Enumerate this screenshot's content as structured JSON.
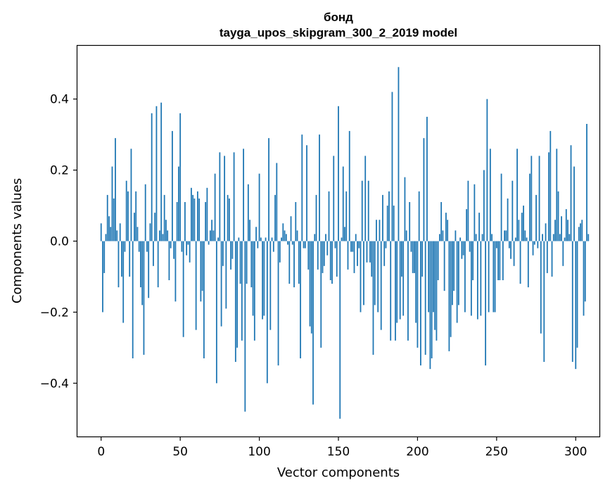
{
  "chart_data": {
    "type": "bar",
    "title": "бонд",
    "subtitle": "tayga_upos_skipgram_300_2_2019 model",
    "xlabel": "Vector components",
    "ylabel": "Components values",
    "xlim": [
      -15,
      315
    ],
    "ylim": [
      -0.55,
      0.55
    ],
    "x_ticks": [
      0,
      50,
      100,
      150,
      200,
      250,
      300
    ],
    "x_tick_labels": [
      "0",
      "50",
      "100",
      "150",
      "200",
      "250",
      "300"
    ],
    "y_ticks": [
      -0.4,
      -0.2,
      0.0,
      0.2,
      0.4
    ],
    "y_tick_labels": [
      "−0.4",
      "−0.2",
      "0.0",
      "0.2",
      "0.4"
    ],
    "bar_color": "#1f77b4",
    "values": [
      0.05,
      -0.2,
      -0.09,
      0.02,
      0.13,
      0.07,
      0.04,
      0.21,
      0.12,
      0.29,
      0.03,
      -0.13,
      0.05,
      -0.1,
      -0.23,
      -0.03,
      0.17,
      0.14,
      -0.1,
      0.26,
      -0.33,
      0.08,
      0.14,
      0.04,
      -0.03,
      -0.13,
      -0.18,
      -0.32,
      0.16,
      -0.03,
      -0.16,
      0.05,
      0.36,
      -0.07,
      0.08,
      0.38,
      -0.13,
      0.03,
      0.39,
      0.02,
      0.13,
      0.06,
      0.03,
      -0.11,
      -0.02,
      0.31,
      -0.05,
      -0.17,
      0.11,
      0.21,
      0.36,
      -0.03,
      -0.27,
      0.11,
      -0.04,
      -0.01,
      -0.06,
      0.15,
      0.13,
      0.12,
      -0.25,
      0.14,
      0.12,
      -0.17,
      -0.14,
      -0.33,
      0.11,
      0.15,
      -0.01,
      0.03,
      0.06,
      0.03,
      0.19,
      -0.4,
      0.01,
      0.25,
      -0.24,
      -0.07,
      0.24,
      -0.19,
      0.13,
      0.12,
      -0.08,
      -0.05,
      0.25,
      -0.34,
      -0.3,
      0.01,
      -0.12,
      -0.28,
      0.26,
      -0.48,
      -0.12,
      0.16,
      0.06,
      -0.13,
      -0.21,
      -0.28,
      0.04,
      -0.02,
      0.19,
      0.01,
      -0.22,
      -0.21,
      0.01,
      -0.4,
      0.29,
      -0.25,
      0.01,
      -0.03,
      0.13,
      0.22,
      -0.35,
      -0.06,
      0.01,
      0.05,
      0.03,
      0.02,
      -0.01,
      -0.12,
      0.07,
      -0.01,
      -0.13,
      0.11,
      0.03,
      -0.12,
      -0.33,
      0.3,
      -0.02,
      -0.02,
      0.27,
      -0.08,
      -0.24,
      -0.26,
      -0.46,
      0.02,
      0.13,
      -0.08,
      0.3,
      -0.3,
      -0.09,
      -0.07,
      0.02,
      -0.04,
      0.14,
      -0.11,
      -0.12,
      0.24,
      -0.02,
      -0.1,
      0.38,
      -0.5,
      0.01,
      0.21,
      0.04,
      0.14,
      -0.08,
      0.31,
      -0.03,
      -0.03,
      -0.09,
      0.02,
      -0.07,
      -0.02,
      -0.2,
      0.17,
      -0.18,
      0.24,
      -0.06,
      0.17,
      -0.06,
      -0.1,
      -0.32,
      -0.18,
      0.06,
      -0.2,
      0.06,
      -0.25,
      0.13,
      -0.07,
      -0.02,
      0.1,
      0.14,
      -0.28,
      0.42,
      0.1,
      -0.28,
      -0.23,
      0.49,
      -0.22,
      -0.1,
      -0.21,
      0.18,
      0.03,
      -0.28,
      0.11,
      -0.03,
      -0.09,
      -0.09,
      -0.23,
      -0.3,
      0.14,
      -0.35,
      -0.1,
      0.29,
      -0.32,
      0.35,
      -0.2,
      -0.36,
      -0.33,
      -0.2,
      -0.25,
      -0.28,
      -0.11,
      0.02,
      0.11,
      0.03,
      -0.14,
      0.08,
      0.06,
      -0.31,
      -0.27,
      -0.18,
      -0.14,
      0.03,
      -0.23,
      -0.18,
      0.01,
      -0.05,
      -0.04,
      -0.2,
      0.09,
      0.17,
      -0.03,
      -0.21,
      -0.11,
      0.16,
      0.02,
      -0.22,
      0.08,
      -0.21,
      0.02,
      0.2,
      -0.35,
      0.4,
      -0.2,
      0.26,
      0.02,
      -0.2,
      -0.2,
      -0.02,
      -0.11,
      -0.11,
      0.19,
      -0.11,
      0.03,
      0.03,
      0.12,
      -0.02,
      -0.05,
      0.17,
      -0.07,
      0.01,
      0.26,
      0.06,
      -0.12,
      0.08,
      0.1,
      0.03,
      0.01,
      -0.13,
      0.19,
      0.24,
      -0.04,
      -0.01,
      0.13,
      -0.02,
      0.24,
      -0.26,
      0.02,
      -0.34,
      0.05,
      -0.09,
      0.25,
      0.31,
      -0.1,
      0.02,
      0.06,
      0.26,
      0.14,
      0.02,
      0.07,
      -0.07,
      0.01,
      0.09,
      0.06,
      0.02,
      0.27,
      -0.34,
      0.21,
      -0.36,
      -0.3,
      0.04,
      0.05,
      0.06,
      -0.21,
      -0.17,
      0.33,
      0.02
    ]
  }
}
